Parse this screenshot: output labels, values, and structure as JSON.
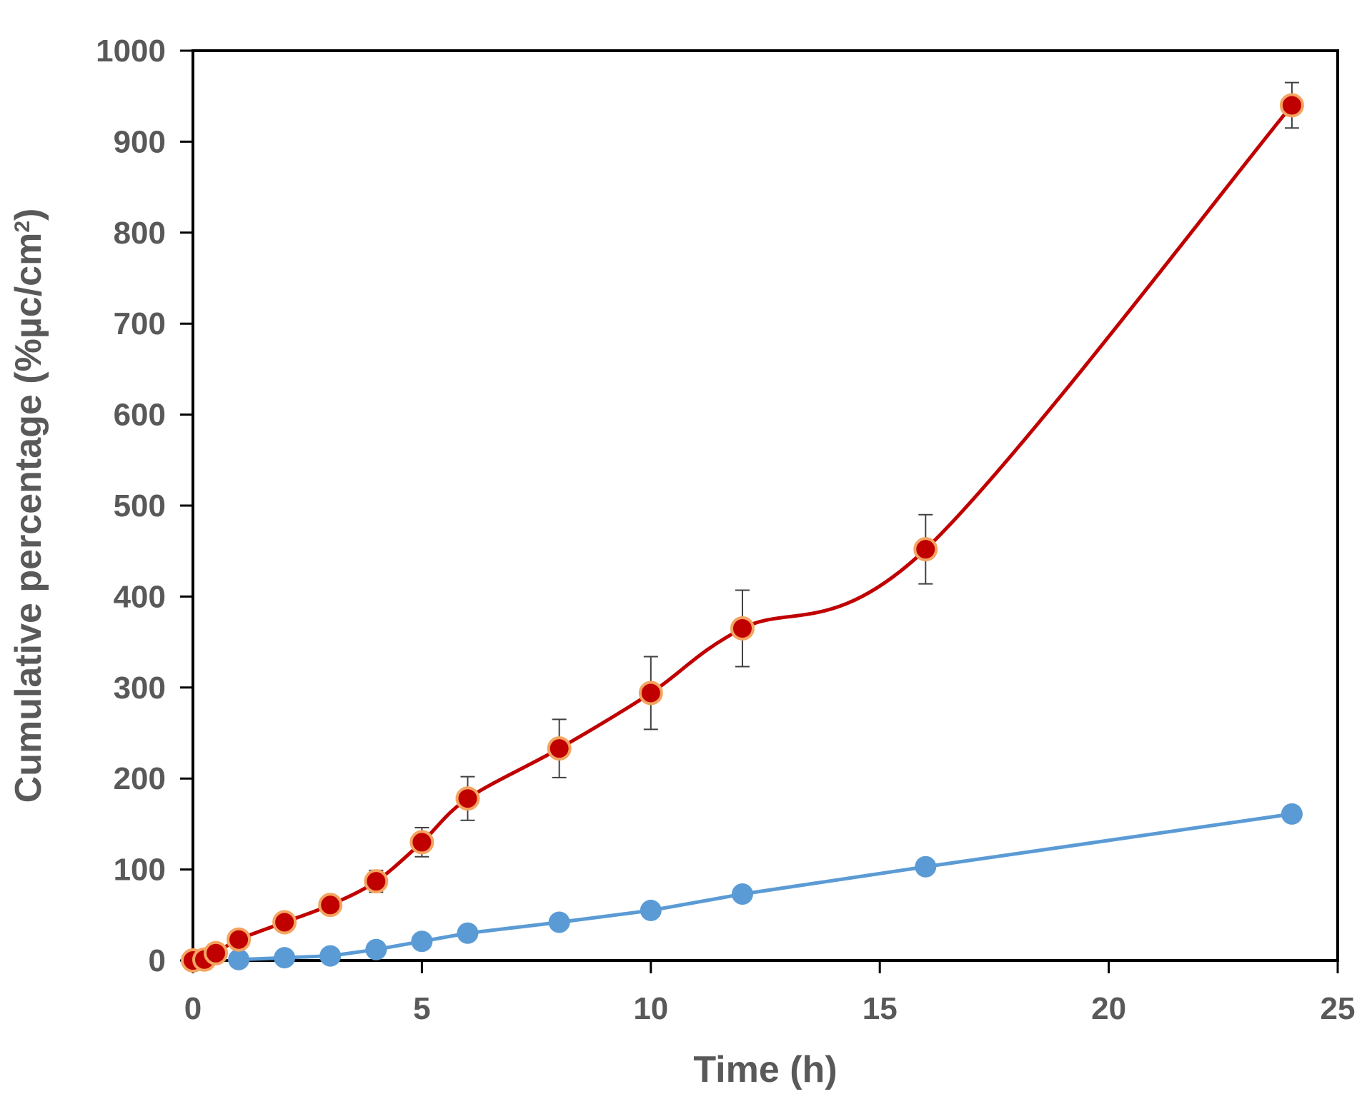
{
  "chart_data": {
    "type": "line",
    "xlabel": "Time (h)",
    "ylabel": {
      "main": "Cumulative percentage (%µc/cm",
      "sup": "2",
      "close": ")"
    },
    "xlim": [
      0,
      25
    ],
    "ylim": [
      0,
      1000
    ],
    "x_ticks": [
      "0",
      "5",
      "10",
      "15",
      "20",
      "25"
    ],
    "y_ticks": [
      "0",
      "100",
      "200",
      "300",
      "400",
      "500",
      "600",
      "700",
      "800",
      "900",
      "1000"
    ],
    "grid": false,
    "legend": "none",
    "series": [
      {
        "color": "#C00000",
        "marker_edge": "#F4A460",
        "line": "smooth",
        "x": [
          0,
          0.25,
          0.5,
          1,
          2,
          3,
          4,
          5,
          6,
          8,
          10,
          12,
          16,
          24
        ],
        "y": [
          0,
          1,
          8,
          23,
          42,
          61,
          87,
          130,
          178,
          233,
          294,
          365,
          452,
          940
        ],
        "error": [
          0,
          0,
          0,
          0,
          0,
          0,
          12,
          16,
          24,
          32,
          40,
          42,
          38,
          25
        ]
      },
      {
        "color": "#5B9BD5",
        "line": "straight",
        "x": [
          1,
          2,
          3,
          4,
          5,
          6,
          8,
          10,
          12,
          16,
          24
        ],
        "y": [
          1,
          3,
          5,
          12,
          21,
          30,
          42,
          55,
          73,
          103,
          161
        ]
      }
    ]
  }
}
